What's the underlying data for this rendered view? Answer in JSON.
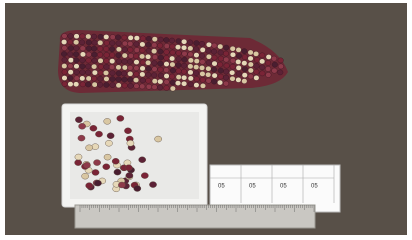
{
  "labels": {
    "codes": [
      "05",
      "05",
      "05",
      "05"
    ]
  }
}
